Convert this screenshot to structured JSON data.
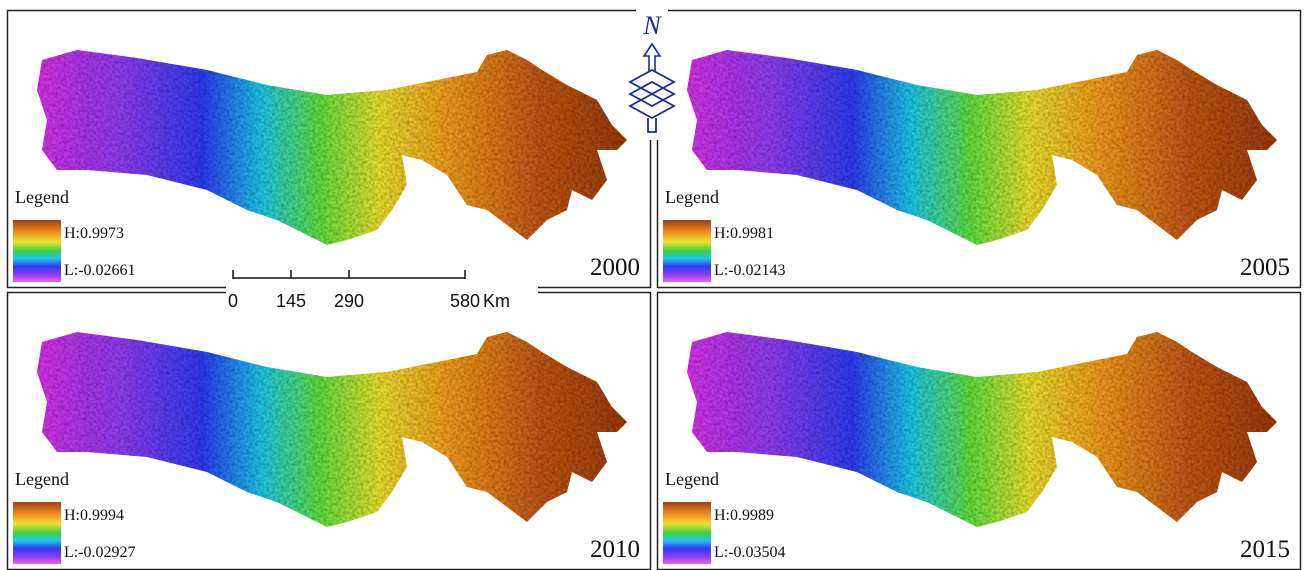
{
  "panels": [
    {
      "legend_title": "Legend",
      "high_label": "H:0.9973",
      "low_label": "L:-0.02661",
      "year": "2000"
    },
    {
      "legend_title": "Legend",
      "high_label": "H:0.9981",
      "low_label": "L:-0.02143",
      "year": "2005"
    },
    {
      "legend_title": "Legend",
      "high_label": "H:0.9994",
      "low_label": "L:-0.02927",
      "year": "2010"
    },
    {
      "legend_title": "Legend",
      "high_label": "H:0.9989",
      "low_label": "L:-0.03504",
      "year": "2015"
    }
  ],
  "scale_bar": {
    "ticks": [
      0,
      145,
      290,
      580
    ],
    "unit": "Km"
  },
  "north_arrow": {
    "label": "N"
  }
}
